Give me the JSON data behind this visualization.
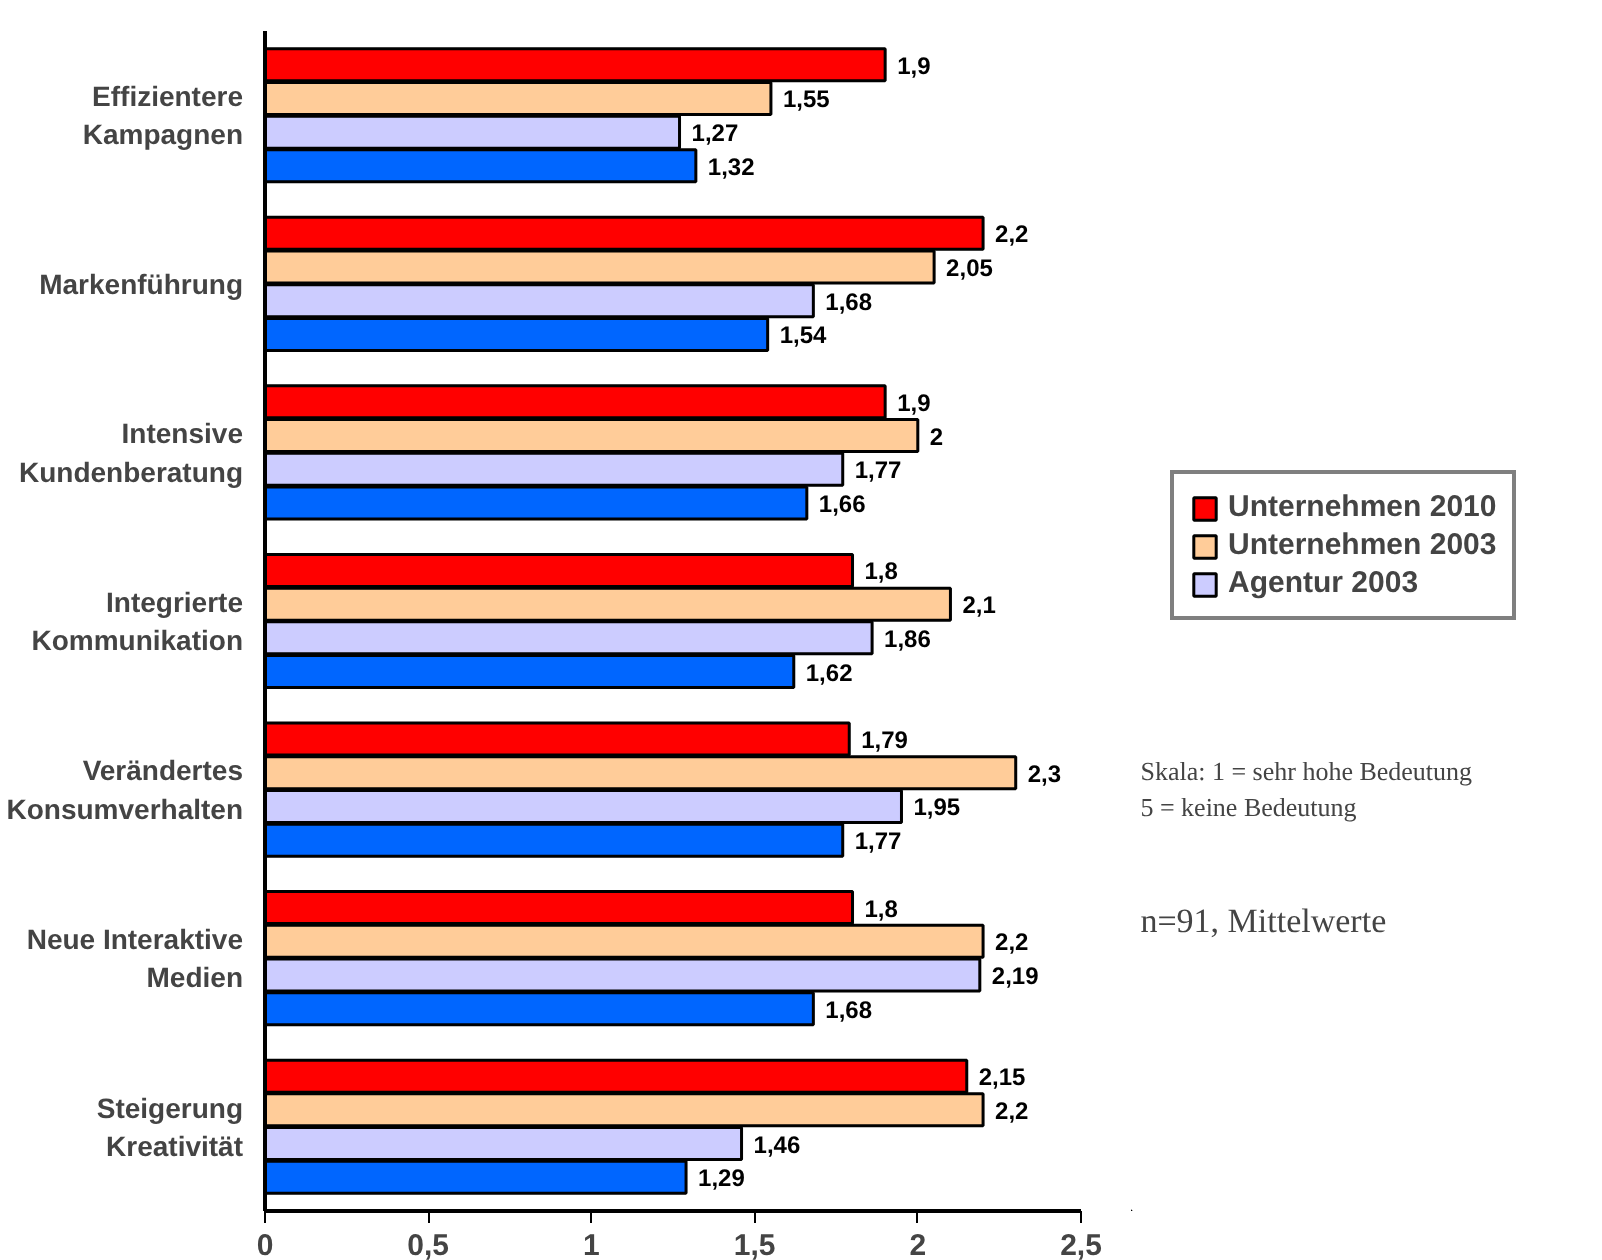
{
  "chart_data": {
    "type": "bar",
    "orientation": "horizontal",
    "categories": [
      "Effizientere Kampagnen",
      "Markenführung",
      "Intensive Kundenberatung",
      "Integrierte Kommunikation",
      "Verändertes Konsumverhalten",
      "Neue Interaktive Medien",
      "Steigerung Kreativität"
    ],
    "series": [
      {
        "name": "Unternehmen 2010",
        "color": "#ff0000",
        "values": [
          1.9,
          2.2,
          1.9,
          1.8,
          1.79,
          1.8,
          2.15
        ],
        "value_labels": [
          "1,9",
          "2,2",
          "1,9",
          "1,8",
          "1,79",
          "1,8",
          "2,15"
        ]
      },
      {
        "name": "Unternehmen 2003",
        "color": "#ffcc99",
        "values": [
          1.55,
          2.05,
          2,
          2.1,
          2.3,
          2.2,
          2.2
        ],
        "value_labels": [
          "1,55",
          "2,05",
          "2",
          "2,1",
          "2,3",
          "2,2",
          "2,2"
        ]
      },
      {
        "name": "Agentur 2003",
        "color": "#ccccff",
        "values": [
          1.27,
          1.68,
          1.77,
          1.86,
          1.95,
          2.19,
          1.46
        ],
        "value_labels": [
          "1,27",
          "1,68",
          "1,77",
          "1,86",
          "1,95",
          "2,19",
          "1,46"
        ]
      },
      {
        "color": "#0066ff",
        "values": [
          1.32,
          1.54,
          1.66,
          1.62,
          1.77,
          1.68,
          1.29
        ],
        "value_labels": [
          "1,32",
          "1,54",
          "1,66",
          "1,62",
          "1,77",
          "1,68",
          "1,29"
        ]
      }
    ],
    "xlim": [
      0,
      2.5
    ],
    "xticks": [
      0,
      {
        "value": 0.5,
        "label": "0,5"
      },
      1,
      {
        "value": 1.5,
        "label": "1,5"
      },
      2,
      {
        "value": 2.5,
        "label": "2,5"
      }
    ],
    "grid": false,
    "legend": "right",
    "annotations": [
      "Skala: 1 = sehr hohe Bedeutung\n5 = keine Bedeutung",
      "n=91, Mittelwerte"
    ]
  }
}
